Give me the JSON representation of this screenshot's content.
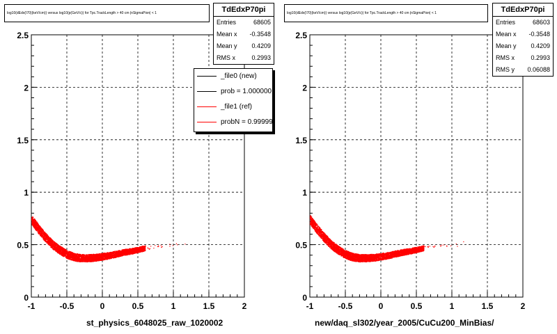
{
  "panels": [
    {
      "title": "log10(dEdx(I70)(keV/cm)) versus log10(p(GeV/c)) for Tpc.TrackLength > 40 cm |nSigmaPion| < 1",
      "stats": {
        "name": "TdEdxP70pi",
        "rows": [
          {
            "label": "Entries",
            "value": "68605"
          },
          {
            "label": "Mean x",
            "value": "-0.3548"
          },
          {
            "label": "Mean y",
            "value": "0.4209"
          },
          {
            "label": "RMS x",
            "value": "0.2993"
          }
        ]
      },
      "x_title": "st_physics_6048025_raw_1020002"
    },
    {
      "title": "log10(dEdx(I70)(keV/cm)) versus log10(p(GeV/c)) for Tpc.TrackLength > 40 cm |nSigmaPion| < 1",
      "stats": {
        "name": "TdEdxP70pi",
        "rows": [
          {
            "label": "Entries",
            "value": "68603"
          },
          {
            "label": "Mean x",
            "value": "-0.3548"
          },
          {
            "label": "Mean y",
            "value": "0.4209"
          },
          {
            "label": "RMS x",
            "value": "0.2993"
          },
          {
            "label": "RMS y",
            "value": "0.06088"
          }
        ]
      },
      "x_title": "new/daq_sl302/year_2005/CuCu200_MinBias/"
    }
  ],
  "legend": {
    "items": [
      {
        "label": "_file0 (new)",
        "color": "#000000"
      },
      {
        "label": "prob = 1.000000",
        "color": "#000000"
      },
      {
        "label": "_file1 (ref)",
        "color": "#ff0000"
      },
      {
        "label": "probN = 0.999999",
        "color": "#ff0000"
      }
    ]
  },
  "chart_data": [
    {
      "type": "scatter",
      "title": "log10(dEdx(I70)(keV/cm)) versus log10(p(GeV/c)) for Tpc.TrackLength > 40 cm |nSigmaPion| < 1",
      "xlabel": "st_physics_6048025_raw_1020002",
      "ylabel": "",
      "xlim": [
        -1,
        2
      ],
      "ylim": [
        0,
        2.5
      ],
      "x_ticks": [
        "-1",
        "-0.5",
        "0",
        "0.5",
        "1",
        "1.5",
        "2"
      ],
      "y_ticks": [
        "0",
        "0.5",
        "1",
        "1.5",
        "2",
        "2.5"
      ],
      "grid": true,
      "series": [
        {
          "color": "#ff0000",
          "band_x": [
            -1.0,
            -0.9,
            -0.8,
            -0.7,
            -0.6,
            -0.5,
            -0.4,
            -0.3,
            -0.2,
            -0.1,
            0.0,
            0.1,
            0.2,
            0.3,
            0.4,
            0.5,
            0.6
          ],
          "band_y": [
            0.74,
            0.65,
            0.57,
            0.5,
            0.45,
            0.41,
            0.385,
            0.375,
            0.375,
            0.38,
            0.39,
            0.4,
            0.415,
            0.43,
            0.44,
            0.455,
            0.47
          ],
          "sparse_x": [
            0.65,
            0.75,
            0.85,
            0.95,
            1.05,
            1.15
          ],
          "sparse_y": [
            0.475,
            0.485,
            0.49,
            0.495,
            0.5,
            0.52
          ]
        }
      ]
    },
    {
      "type": "scatter",
      "title": "log10(dEdx(I70)(keV/cm)) versus log10(p(GeV/c)) for Tpc.TrackLength > 40 cm |nSigmaPion| < 1",
      "xlabel": "new/daq_sl302/year_2005/CuCu200_MinBias/",
      "ylabel": "",
      "xlim": [
        -1,
        2
      ],
      "ylim": [
        0,
        2.5
      ],
      "x_ticks": [
        "-1",
        "-0.5",
        "0",
        "0.5",
        "1",
        "1.5",
        "2"
      ],
      "y_ticks": [
        "0",
        "0.5",
        "1",
        "1.5",
        "2",
        "2.5"
      ],
      "grid": true,
      "series": [
        {
          "color": "#ff0000",
          "band_x": [
            -1.0,
            -0.9,
            -0.8,
            -0.7,
            -0.6,
            -0.5,
            -0.4,
            -0.3,
            -0.2,
            -0.1,
            0.0,
            0.1,
            0.2,
            0.3,
            0.4,
            0.5,
            0.6
          ],
          "band_y": [
            0.74,
            0.65,
            0.57,
            0.5,
            0.45,
            0.41,
            0.385,
            0.375,
            0.375,
            0.38,
            0.39,
            0.4,
            0.415,
            0.43,
            0.44,
            0.455,
            0.47
          ],
          "sparse_x": [
            0.65,
            0.75,
            0.85,
            0.95,
            1.05,
            1.15
          ],
          "sparse_y": [
            0.475,
            0.485,
            0.49,
            0.495,
            0.5,
            0.52
          ]
        }
      ]
    }
  ]
}
